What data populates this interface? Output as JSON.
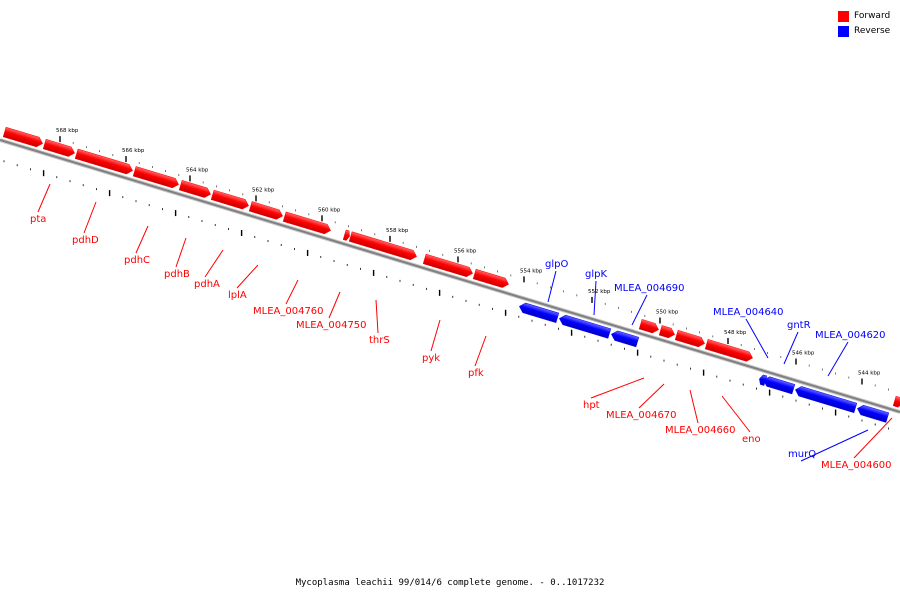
{
  "legend": {
    "forward_label": "Forward",
    "reverse_label": "Reverse",
    "forward_color": "#ff0000",
    "reverse_color": "#0000ff"
  },
  "caption": "Mycoplasma leachii 99/014/6 complete genome. - 0..1017232",
  "colors": {
    "forward": "#ff0000",
    "reverse": "#0000ff",
    "axis": "#808080"
  },
  "ticks": [
    {
      "kbp": 568,
      "label": "568 kbp"
    },
    {
      "kbp": 566,
      "label": "566 kbp"
    },
    {
      "kbp": 564,
      "label": "564 kbp"
    },
    {
      "kbp": 562,
      "label": "562 kbp"
    },
    {
      "kbp": 560,
      "label": "560 kbp"
    },
    {
      "kbp": 558,
      "label": "558 kbp"
    },
    {
      "kbp": 556,
      "label": "556 kbp"
    },
    {
      "kbp": 554,
      "label": "554 kbp"
    },
    {
      "kbp": 552,
      "label": "552 kbp"
    },
    {
      "kbp": 550,
      "label": "550 kbp"
    },
    {
      "kbp": 548,
      "label": "548 kbp"
    },
    {
      "kbp": 546,
      "label": "546 kbp"
    },
    {
      "kbp": 544,
      "label": "544 kbp"
    }
  ],
  "genes": [
    {
      "name": "pta",
      "strand": "forward"
    },
    {
      "name": "pdhD",
      "strand": "forward"
    },
    {
      "name": "pdhC",
      "strand": "forward"
    },
    {
      "name": "pdhB",
      "strand": "forward"
    },
    {
      "name": "pdhA",
      "strand": "forward"
    },
    {
      "name": "lplA",
      "strand": "forward"
    },
    {
      "name": "MLEA_004760",
      "strand": "forward"
    },
    {
      "name": "MLEA_004750",
      "strand": "forward"
    },
    {
      "name": "thrS",
      "strand": "forward"
    },
    {
      "name": "pyk",
      "strand": "forward"
    },
    {
      "name": "pfk",
      "strand": "forward"
    },
    {
      "name": "glpO",
      "strand": "reverse"
    },
    {
      "name": "glpK",
      "strand": "reverse"
    },
    {
      "name": "MLEA_004690",
      "strand": "reverse"
    },
    {
      "name": "hpt",
      "strand": "forward"
    },
    {
      "name": "MLEA_004670",
      "strand": "forward"
    },
    {
      "name": "MLEA_004660",
      "strand": "forward"
    },
    {
      "name": "eno",
      "strand": "forward"
    },
    {
      "name": "MLEA_004640",
      "strand": "reverse"
    },
    {
      "name": "gntR",
      "strand": "reverse"
    },
    {
      "name": "MLEA_004620",
      "strand": "reverse"
    },
    {
      "name": "murQ",
      "strand": "reverse"
    },
    {
      "name": "MLEA_004600",
      "strand": "forward"
    }
  ]
}
